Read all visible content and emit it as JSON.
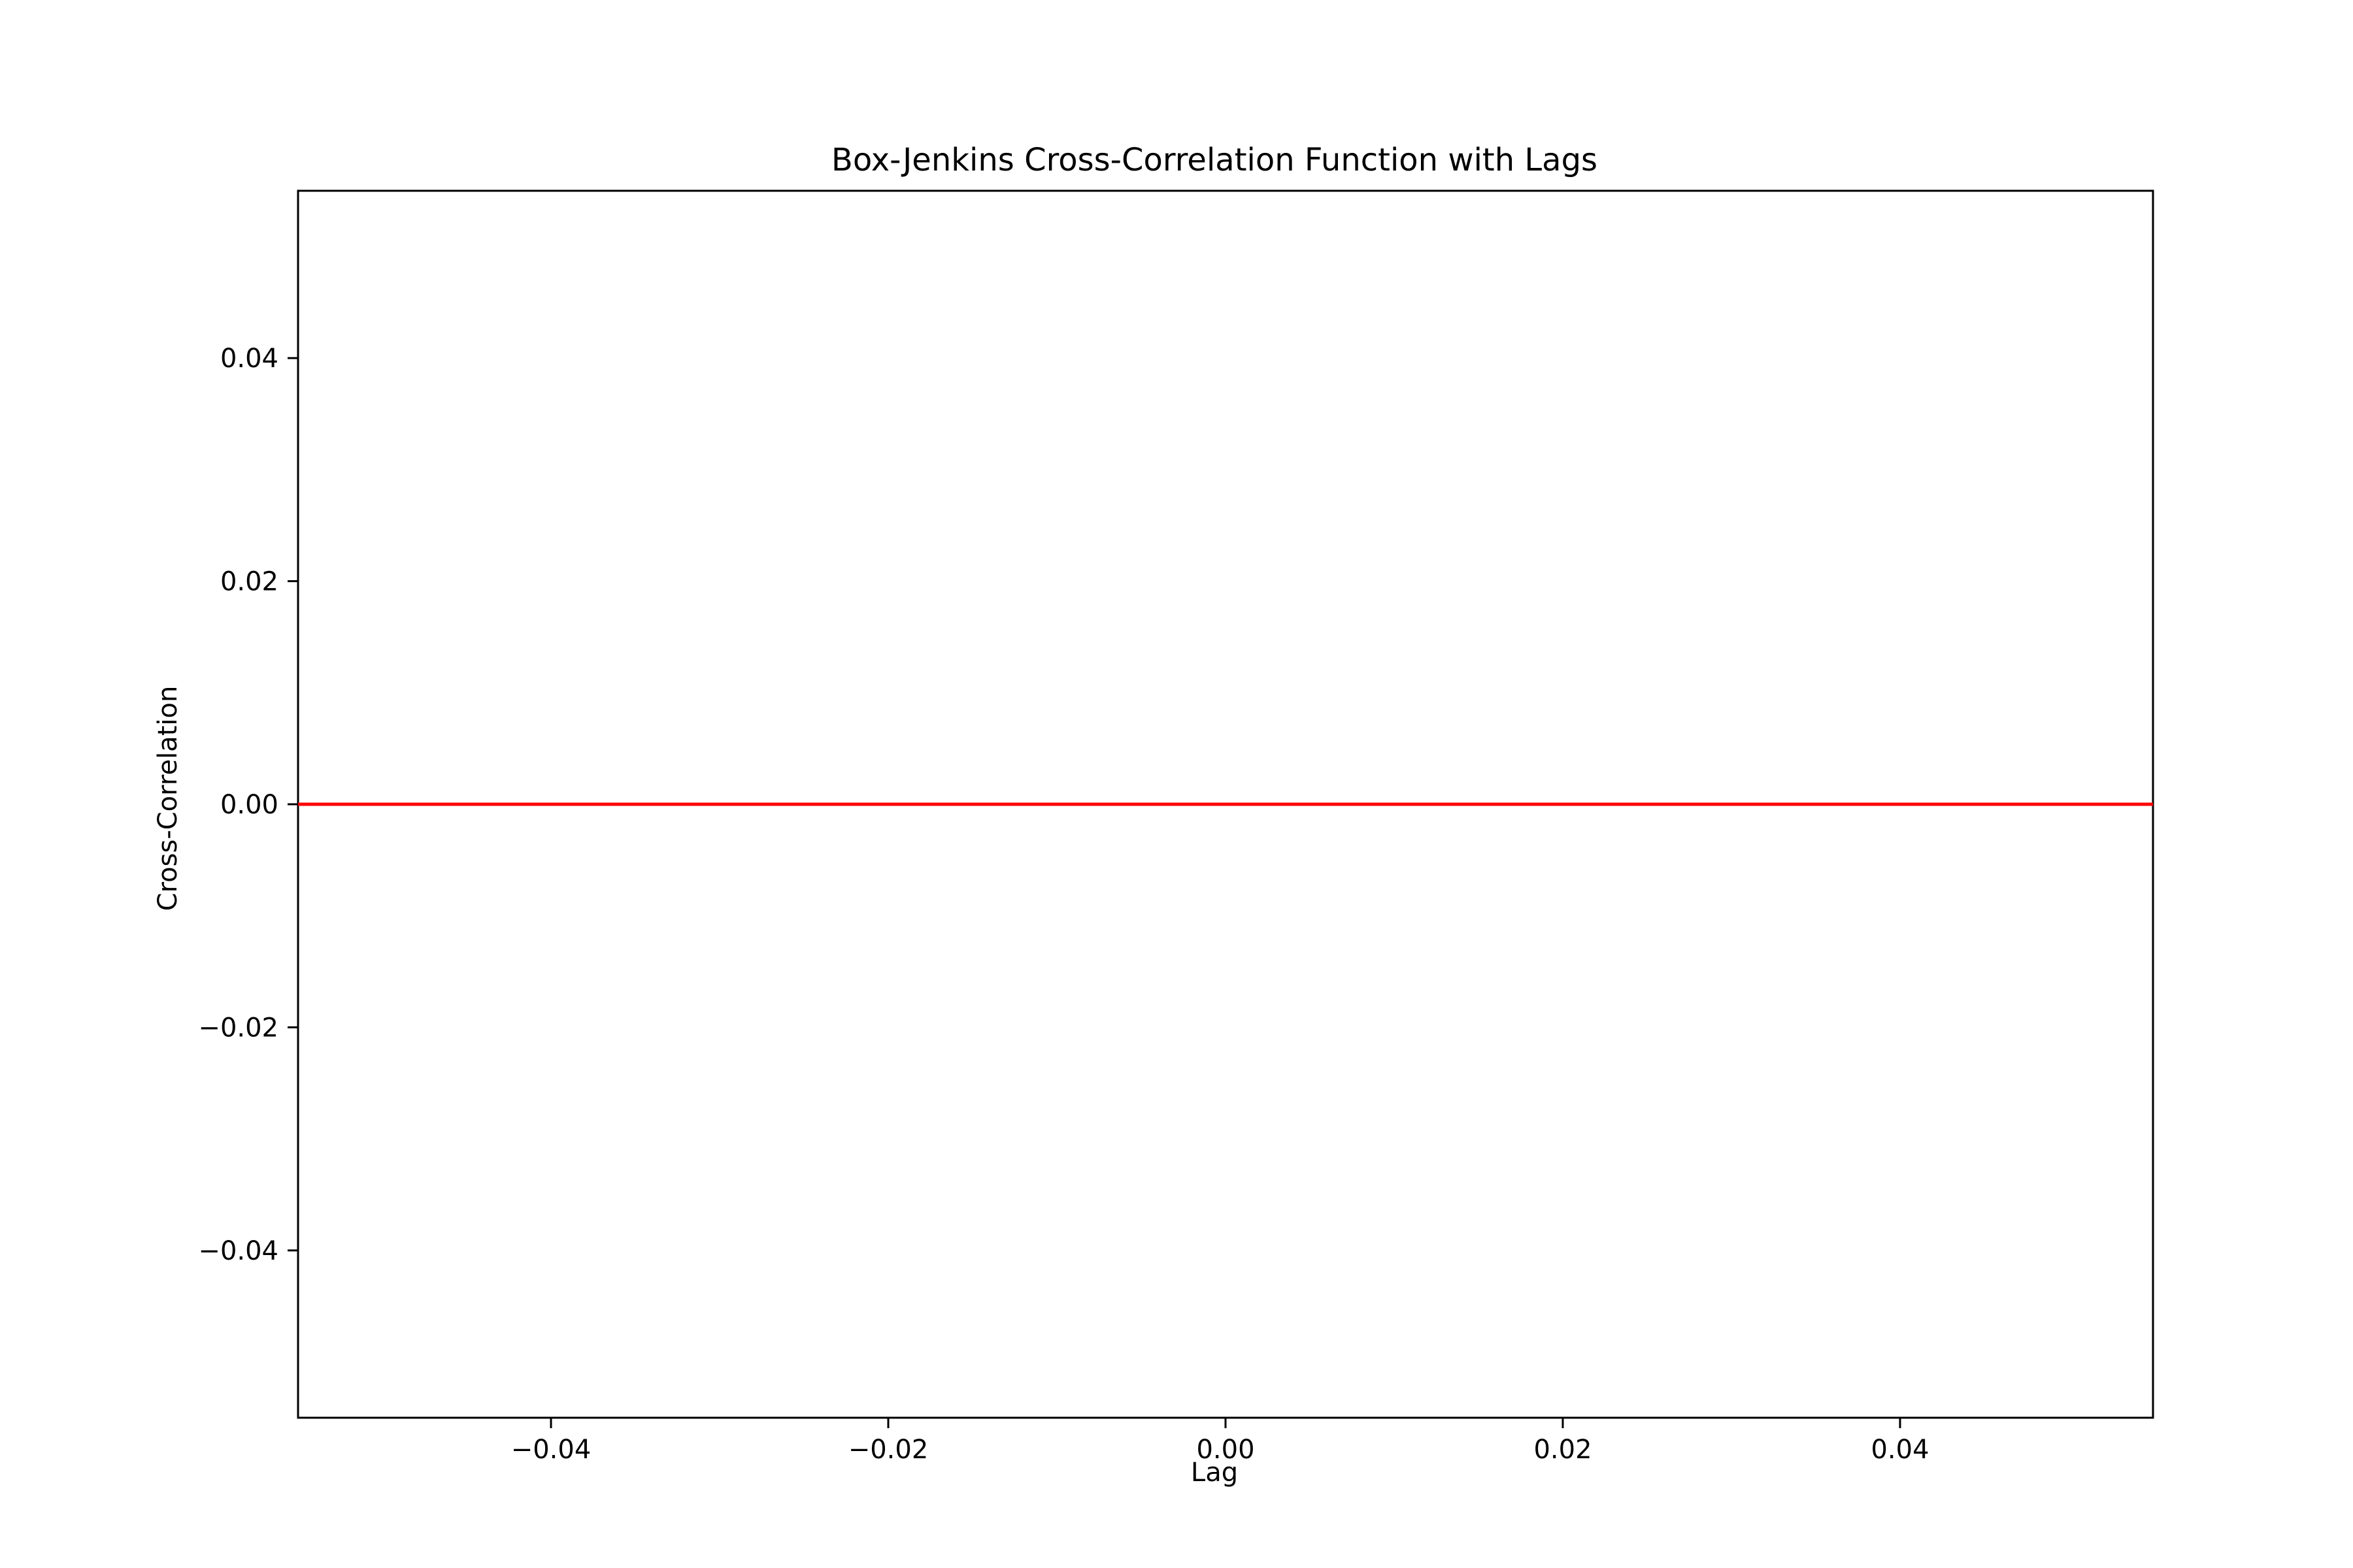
{
  "chart_data": {
    "type": "line",
    "title": "Box-Jenkins Cross-Correlation Function with Lags",
    "xlabel": "Lag",
    "ylabel": "Cross-Correlation",
    "xlim": [
      -0.055,
      0.055
    ],
    "ylim": [
      -0.055,
      0.055
    ],
    "xticks": [
      -0.04,
      -0.02,
      0.0,
      0.02,
      0.04
    ],
    "xtick_labels": [
      "−0.04",
      "−0.02",
      "0.00",
      "0.02",
      "0.04"
    ],
    "yticks": [
      -0.04,
      -0.02,
      0.0,
      0.02,
      0.04
    ],
    "ytick_labels": [
      "−0.04",
      "−0.02",
      "0.00",
      "0.02",
      "0.04"
    ],
    "grid": false,
    "hlines": [
      {
        "y": 0.0,
        "color": "#ff0000"
      }
    ],
    "series": []
  }
}
